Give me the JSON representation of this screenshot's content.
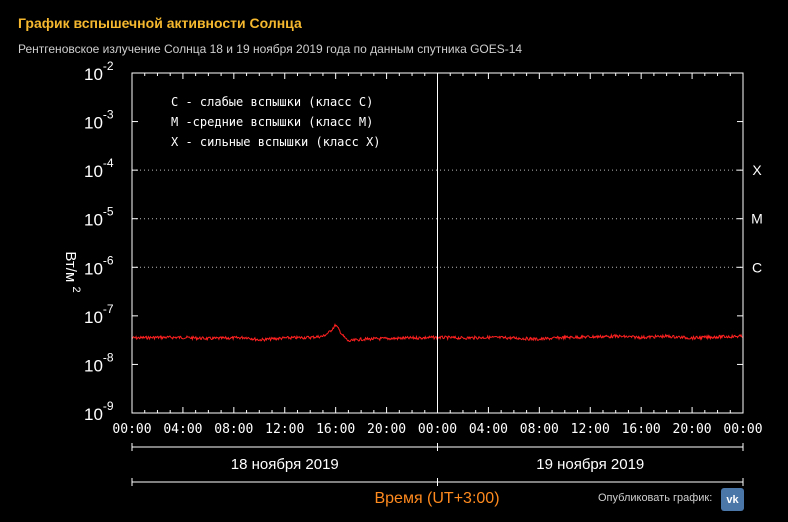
{
  "header": {
    "title": "График вспышечной активности Солнца",
    "subtitle": "Рентгеновское излучение Солнца 18 и 19 ноября 2019 года по данным спутника GOES-14"
  },
  "share": {
    "label": "Опубликовать график:",
    "vk_text": "vk",
    "vk_icon": "vk-logo-icon"
  },
  "colors": {
    "background": "#000000",
    "title": "#f5b82e",
    "series": "#ff2020",
    "xlabel": "#ff8a1e",
    "axis": "#ffffff"
  },
  "chart_data": {
    "type": "line",
    "ylabel": "Вт/м",
    "ylabel_sup": "2",
    "xlabel": "Время (UT+3:00)",
    "y_scale": "log",
    "ylim": [
      1e-09,
      0.01
    ],
    "y_ticks": [
      {
        "base": "10",
        "exp": "-2",
        "value": 0.01
      },
      {
        "base": "10",
        "exp": "-3",
        "value": 0.001
      },
      {
        "base": "10",
        "exp": "-4",
        "value": 0.0001
      },
      {
        "base": "10",
        "exp": "-5",
        "value": 1e-05
      },
      {
        "base": "10",
        "exp": "-6",
        "value": 1e-06
      },
      {
        "base": "10",
        "exp": "-7",
        "value": 1e-07
      },
      {
        "base": "10",
        "exp": "-8",
        "value": 1e-08
      },
      {
        "base": "10",
        "exp": "-9",
        "value": 1e-09
      }
    ],
    "x_unit": "hours from 2019-11-18 00:00 (UT+3)",
    "xlim": [
      0,
      48
    ],
    "x_tick_labels": [
      "00:00",
      "04:00",
      "08:00",
      "12:00",
      "16:00",
      "20:00",
      "00:00",
      "04:00",
      "08:00",
      "12:00",
      "16:00",
      "20:00",
      "00:00"
    ],
    "day_labels": [
      "18 ноября 2019",
      "19 ноября 2019"
    ],
    "class_levels": [
      {
        "label": "X",
        "value": 0.0001
      },
      {
        "label": "M",
        "value": 1e-05
      },
      {
        "label": "C",
        "value": 1e-06
      }
    ],
    "legend": [
      "C - слабые вспышки (класс C)",
      "M -средние вспышки (класс M)",
      "X - сильные вспышки (класс X)"
    ],
    "legend_position": "top-left",
    "series": [
      {
        "x": [
          0,
          2,
          4,
          6,
          8,
          9,
          10,
          12,
          14,
          15,
          15.5,
          16,
          16.3,
          16.6,
          17,
          18,
          20,
          22,
          24,
          26,
          28,
          30,
          32,
          34,
          36,
          38,
          40,
          42,
          44,
          46,
          48
        ],
        "y": [
          3.5e-08,
          3.6e-08,
          3.6e-08,
          3.4e-08,
          3.5e-08,
          3.6e-08,
          3.2e-08,
          3.5e-08,
          3.6e-08,
          3.8e-08,
          4.6e-08,
          6.5e-08,
          5e-08,
          3.8e-08,
          3e-08,
          3.3e-08,
          3.4e-08,
          3.5e-08,
          3.6e-08,
          3.5e-08,
          3.6e-08,
          3.5e-08,
          3.3e-08,
          3.6e-08,
          3.7e-08,
          3.8e-08,
          3.6e-08,
          3.8e-08,
          3.5e-08,
          3.7e-08,
          3.8e-08
        ]
      }
    ]
  }
}
